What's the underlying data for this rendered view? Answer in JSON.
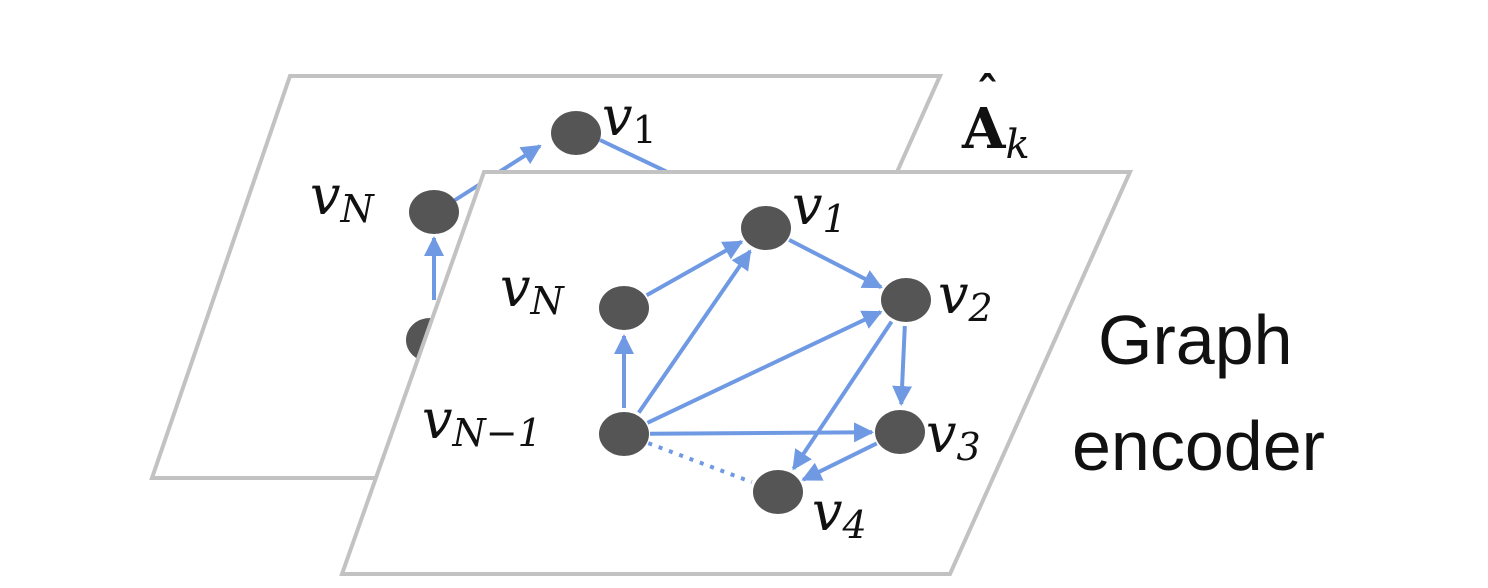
{
  "colors": {
    "background": "#ffffff",
    "plane_fill": "#ffffff",
    "plane_stroke": "#c2c2c2",
    "node": "#555555",
    "edge": "#6f9ae3",
    "text": "#111111"
  },
  "back_plane": {
    "label_main": "A",
    "label_hat": "ˆ",
    "label_sub": "k",
    "nodes": [
      {
        "id": "bv1",
        "name": "v",
        "sub": "1"
      },
      {
        "id": "bvN",
        "name": "v",
        "sub": "N"
      }
    ]
  },
  "front_plane": {
    "nodes": [
      {
        "id": "v1",
        "name": "v",
        "sub": "1"
      },
      {
        "id": "v2",
        "name": "v",
        "sub": "2"
      },
      {
        "id": "v3",
        "name": "v",
        "sub": "3"
      },
      {
        "id": "v4",
        "name": "v",
        "sub": "4"
      },
      {
        "id": "vN",
        "name": "v",
        "sub": "N"
      },
      {
        "id": "vN1",
        "name": "v",
        "sub": "N−1"
      }
    ],
    "edges": [
      {
        "from": "vN",
        "to": "v1",
        "style": "solid"
      },
      {
        "from": "v1",
        "to": "v2",
        "style": "solid"
      },
      {
        "from": "v2",
        "to": "v3",
        "style": "solid"
      },
      {
        "from": "v3",
        "to": "v4",
        "style": "solid"
      },
      {
        "from": "v2",
        "to": "v4",
        "style": "solid"
      },
      {
        "from": "vN1",
        "to": "vN",
        "style": "solid"
      },
      {
        "from": "vN1",
        "to": "v1",
        "style": "solid"
      },
      {
        "from": "vN1",
        "to": "v2",
        "style": "solid"
      },
      {
        "from": "vN1",
        "to": "v3",
        "style": "solid"
      },
      {
        "from": "vN1",
        "to": "v4",
        "style": "dotted"
      }
    ]
  },
  "side_label": {
    "line1": "Graph",
    "line2": "encoder"
  }
}
